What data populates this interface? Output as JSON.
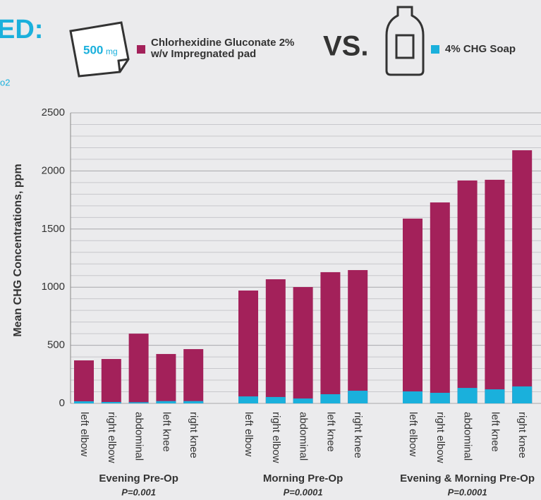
{
  "chart_data": {
    "type": "bar",
    "title": "ED:",
    "subtitle": "o2",
    "comparison": "VS.",
    "pad_amount": "500",
    "pad_unit": "mg",
    "y_label": "Mean CHG Concentrations, ppm",
    "ylim": [
      0,
      2500
    ],
    "yticks": [
      0,
      500,
      1000,
      1500,
      2000,
      2500
    ],
    "y_minor_ticks": [
      100,
      200,
      300,
      400,
      600,
      700,
      800,
      900,
      1100,
      1200,
      1300,
      1400,
      1600,
      1700,
      1800,
      1900,
      2100,
      2200,
      2300,
      2400
    ],
    "grid": true,
    "groups": [
      {
        "name": "Evening Pre-Op",
        "p_value": "P=0.001",
        "categories": [
          "left elbow",
          "right elbow",
          "abdominal",
          "left knee",
          "right knee"
        ]
      },
      {
        "name": "Morning Pre-Op",
        "p_value": "P=0.0001",
        "categories": [
          "left elbow",
          "right elbow",
          "abdominal",
          "left knee",
          "right knee"
        ]
      },
      {
        "name": "Evening & Morning Pre-Op",
        "p_value": "P=0.0001",
        "categories": [
          "left elbow",
          "right elbow",
          "abdominal",
          "left knee",
          "right knee"
        ]
      }
    ],
    "series": [
      {
        "name": "Chlorhexidine Gluconate 2% w/v Impregnated pad",
        "color": "#a3215a",
        "values": [
          370,
          382,
          600,
          425,
          467,
          971,
          1068,
          1001,
          1129,
          1147,
          1590,
          1729,
          1918,
          1924,
          2178
        ]
      },
      {
        "name": "4% CHG Soap",
        "color": "#1ab0dc",
        "values": [
          18,
          12,
          10,
          20,
          20,
          60,
          55,
          42,
          79,
          109,
          103,
          91,
          133,
          121,
          146
        ]
      }
    ]
  }
}
